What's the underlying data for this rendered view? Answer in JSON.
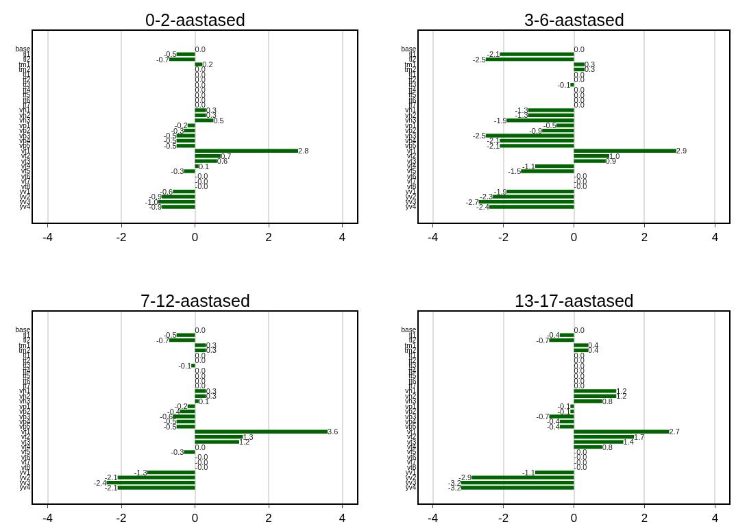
{
  "chart_data": [
    {
      "type": "bar",
      "orientation": "horizontal",
      "title": "0-2-aastased",
      "categories": [
        "base",
        "tl1",
        "tl2",
        "tm1",
        "tm2",
        "tt1",
        "tt2",
        "tt3",
        "tt4",
        "tt5",
        "tt6",
        "tt7",
        "vh1",
        "vh2",
        "vh3",
        "vp1",
        "vp2",
        "vp3",
        "vp4",
        "vp5",
        "vt1",
        "vt2",
        "vt3",
        "vt4",
        "vt5",
        "vt6",
        "vt7",
        "vt8",
        "yv1",
        "yv2",
        "yv3",
        "yv4"
      ],
      "values": [
        0.0,
        -0.5,
        -0.7,
        0.2,
        0.0,
        0.0,
        0.0,
        0.0,
        0.0,
        0.0,
        0.0,
        0.0,
        0.3,
        0.3,
        0.5,
        -0.2,
        -0.3,
        -0.5,
        -0.5,
        -0.5,
        2.8,
        0.7,
        0.6,
        0.1,
        -0.3,
        0.0,
        0.0,
        0.0,
        -0.6,
        -0.9,
        -1.0,
        -0.9
      ],
      "value_labels": [
        "0.0",
        "-0.5",
        "-0.7",
        "0.2",
        "0.0",
        "0.0",
        "0.0",
        "0.0",
        "0.0",
        "0.0",
        "0.0",
        "0.0",
        "0.3",
        "0.3",
        "0.5",
        "-0.2",
        "-0.3",
        "-0.5",
        "-0.5",
        "-0.5",
        "2.8",
        "0.7",
        "0.6",
        "0.1",
        "-0.3",
        "-0.0",
        "-0.0",
        "-0.0",
        "-0.6",
        "-0.9",
        "-1.0",
        "-0.9"
      ],
      "color": "#006400",
      "xlim": [
        -4.4,
        4.4
      ],
      "xticks": [
        -4,
        -2,
        0,
        2,
        4
      ],
      "grid": "x"
    },
    {
      "type": "bar",
      "orientation": "horizontal",
      "title": "3-6-aastased",
      "categories": [
        "base",
        "tl1",
        "tl2",
        "tm1",
        "tm2",
        "tt1",
        "tt2",
        "tt3",
        "tt4",
        "tt5",
        "tt6",
        "tt7",
        "vh1",
        "vh2",
        "vh3",
        "vp1",
        "vp2",
        "vp3",
        "vp4",
        "vp5",
        "vt1",
        "vt2",
        "vt3",
        "vt4",
        "vt5",
        "vt6",
        "vt7",
        "vt8",
        "yv1",
        "yv2",
        "yv3",
        "yv4"
      ],
      "values": [
        0.0,
        -2.1,
        -2.5,
        0.3,
        0.3,
        0.0,
        0.0,
        -0.1,
        0.0,
        0.0,
        0.0,
        0.0,
        -1.3,
        -1.3,
        -1.9,
        -0.5,
        -0.9,
        -2.5,
        -2.1,
        -2.1,
        2.9,
        1.0,
        0.9,
        -1.1,
        -1.5,
        0.0,
        0.0,
        0.0,
        -1.9,
        -2.3,
        -2.7,
        -2.4
      ],
      "value_labels": [
        "0.0",
        "-2.1",
        "-2.5",
        "0.3",
        "0.3",
        "0.0",
        "0.0",
        "-0.1",
        "0.0",
        "0.0",
        "0.0",
        "0.0",
        "-1.3",
        "-1.3",
        "-1.9",
        "-0.5",
        "-0.9",
        "-2.5",
        "-2.1",
        "-2.1",
        "2.9",
        "1.0",
        "0.9",
        "-1.1",
        "-1.5",
        "-0.0",
        "-0.0",
        "-0.0",
        "-1.9",
        "-2.3",
        "-2.7",
        "-2.4"
      ],
      "color": "#006400",
      "xlim": [
        -4.4,
        4.4
      ],
      "xticks": [
        -4,
        -2,
        0,
        2,
        4
      ],
      "grid": "x"
    },
    {
      "type": "bar",
      "orientation": "horizontal",
      "title": "7-12-aastased",
      "categories": [
        "base",
        "tl1",
        "tl2",
        "tm1",
        "tm2",
        "tt1",
        "tt2",
        "tt3",
        "tt4",
        "tt5",
        "tt6",
        "tt7",
        "vh1",
        "vh2",
        "vh3",
        "vp1",
        "vp2",
        "vp3",
        "vp4",
        "vp5",
        "vt1",
        "vt2",
        "vt3",
        "vt4",
        "vt5",
        "vt6",
        "vt7",
        "vt8",
        "yv1",
        "yv2",
        "yv3",
        "yv4"
      ],
      "values": [
        0.0,
        -0.5,
        -0.7,
        0.3,
        0.3,
        0.0,
        0.0,
        -0.1,
        0.0,
        0.0,
        0.0,
        0.0,
        0.3,
        0.3,
        0.1,
        -0.2,
        -0.4,
        -0.6,
        -0.5,
        -0.5,
        3.6,
        1.3,
        1.2,
        0.0,
        -0.3,
        0.0,
        0.0,
        0.0,
        -1.3,
        -2.1,
        -2.4,
        -2.1
      ],
      "value_labels": [
        "0.0",
        "-0.5",
        "-0.7",
        "0.3",
        "0.3",
        "0.0",
        "0.0",
        "-0.1",
        "0.0",
        "0.0",
        "0.0",
        "0.0",
        "0.3",
        "0.3",
        "0.1",
        "-0.2",
        "-0.4",
        "-0.6",
        "-0.5",
        "-0.5",
        "3.6",
        "1.3",
        "1.2",
        "0.0",
        "-0.3",
        "-0.0",
        "-0.0",
        "-0.0",
        "-1.3",
        "-2.1",
        "-2.4",
        "-2.1"
      ],
      "color": "#006400",
      "xlim": [
        -4.4,
        4.4
      ],
      "xticks": [
        -4,
        -2,
        0,
        2,
        4
      ],
      "grid": "x"
    },
    {
      "type": "bar",
      "orientation": "horizontal",
      "title": "13-17-aastased",
      "categories": [
        "base",
        "tl1",
        "tl2",
        "tm1",
        "tm2",
        "tt1",
        "tt2",
        "tt3",
        "tt4",
        "tt5",
        "tt6",
        "tt7",
        "vh1",
        "vh2",
        "vh3",
        "vp1",
        "vp2",
        "vp3",
        "vp4",
        "vp5",
        "vt1",
        "vt2",
        "vt3",
        "vt4",
        "vt5",
        "vt6",
        "vt7",
        "vt8",
        "yv1",
        "yv2",
        "yv3",
        "yv4"
      ],
      "values": [
        0.0,
        -0.4,
        -0.7,
        0.4,
        0.4,
        0.0,
        0.0,
        0.0,
        0.0,
        0.0,
        0.0,
        0.0,
        1.2,
        1.2,
        0.8,
        -0.1,
        -0.1,
        -0.7,
        -0.4,
        -0.4,
        2.7,
        1.7,
        1.4,
        0.8,
        0.0,
        0.0,
        0.0,
        0.0,
        -1.1,
        -2.9,
        -3.2,
        -3.2
      ],
      "value_labels": [
        "0.0",
        "-0.4",
        "-0.7",
        "0.4",
        "0.4",
        "0.0",
        "0.0",
        "0.0",
        "0.0",
        "0.0",
        "0.0",
        "0.0",
        "1.2",
        "1.2",
        "0.8",
        "-0.1",
        "-0.1",
        "-0.7",
        "-0.4",
        "-0.4",
        "2.7",
        "1.7",
        "1.4",
        "0.8",
        "-0.0",
        "-0.0",
        "-0.0",
        "-0.0",
        "-1.1",
        "-2.9",
        "-3.2",
        "-3.2"
      ],
      "color": "#006400",
      "xlim": [
        -4.4,
        4.4
      ],
      "xticks": [
        -4,
        -2,
        0,
        2,
        4
      ],
      "grid": "x"
    }
  ]
}
